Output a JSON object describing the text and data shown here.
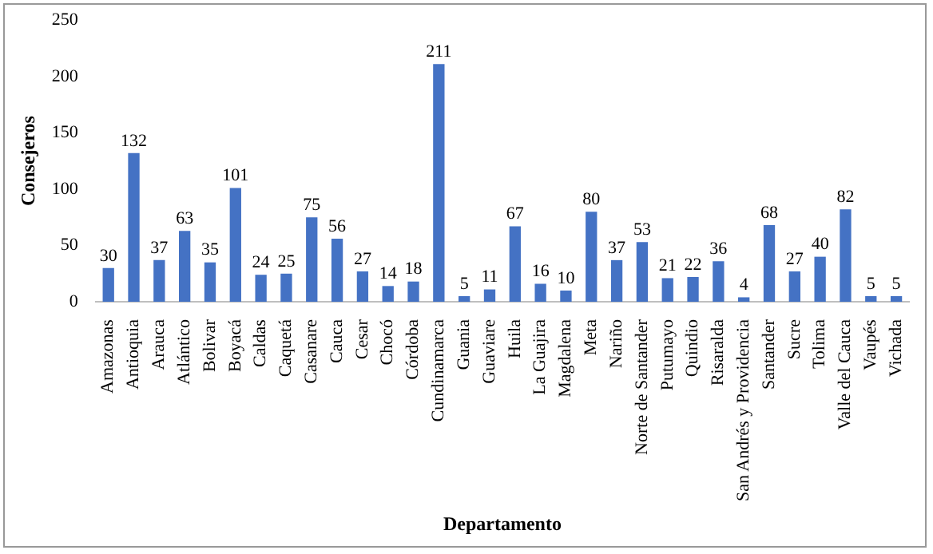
{
  "chart_data": {
    "type": "bar",
    "xlabel": "Departamento",
    "ylabel": "Consejeros",
    "categories": [
      "Amazonas",
      "Antioquia",
      "Arauca",
      "Atlántico",
      "Bolivar",
      "Boyacá",
      "Caldas",
      "Caquetá",
      "Casanare",
      "Cauca",
      "Cesar",
      "Chocó",
      "Córdoba",
      "Cundinamarca",
      "Guania",
      "Guaviare",
      "Huila",
      "La Guajira",
      "Magdalena",
      "Meta",
      "Nariño",
      "Norte de Santander",
      "Putumayo",
      "Quindio",
      "Risaralda",
      "San Andrés y Providencia",
      "Santander",
      "Sucre",
      "Tolima",
      "Valle del Cauca",
      "Vaupés",
      "Vichada"
    ],
    "values": [
      30,
      132,
      37,
      63,
      35,
      101,
      24,
      25,
      75,
      56,
      27,
      14,
      18,
      211,
      5,
      11,
      67,
      16,
      10,
      80,
      37,
      53,
      21,
      22,
      36,
      4,
      68,
      27,
      40,
      82,
      5,
      5
    ],
    "color": "#4472c4",
    "ylim": [
      0,
      250
    ],
    "yticks": [
      0,
      50,
      100,
      150,
      200,
      250
    ],
    "data_labels": true,
    "grid": false,
    "legend": false
  }
}
